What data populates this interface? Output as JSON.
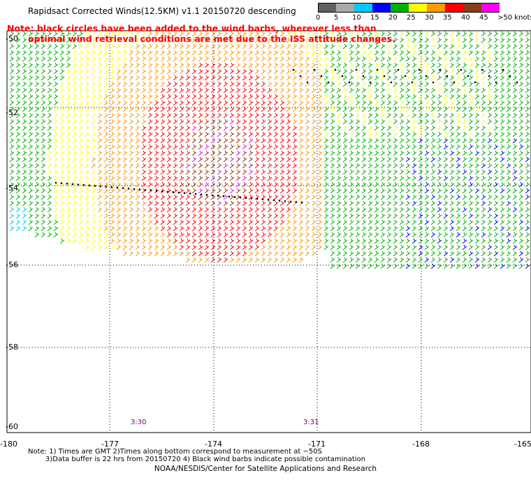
{
  "title": "Rapidsact Corrected Winds(12.5KM) v1.1 20150720 descending",
  "note": {
    "line1": "Note: black circles have been added to the wind barbs, wherever less than",
    "line2": "optimal wind retrieval conditions are met due to the ISS attitude changes."
  },
  "colorbar": {
    "labels": [
      "0",
      "5",
      "10",
      "15",
      "20",
      "25",
      "30",
      "35",
      "40",
      "45",
      ">50 knots"
    ],
    "colors": [
      "#606060",
      "#a8a8a8",
      "#00c8ff",
      "#0000ff",
      "#00b000",
      "#ffff00",
      "#ff9900",
      "#ff0000",
      "#8b3a1a",
      "#ff00ff",
      "#400080"
    ]
  },
  "axes": {
    "lon_labels": [
      "-180",
      "-177",
      "-174",
      "-171",
      "-168",
      "-165"
    ],
    "lat_labels": [
      "-50",
      "-52",
      "-54",
      "-56",
      "-58",
      "-60"
    ]
  },
  "time_labels": [
    "3:30",
    "3:31"
  ],
  "footnote": {
    "line1": "Note: 1) Times are GMT 2)Times along bottom correspond to measurement at ~50S",
    "line2": "3)Data buffer is 22 hrs from 20150720 4) Black wind barbs indicate possible contamination"
  },
  "credit": "NOAA/NESDIS/Center for Satellite Applications and Research"
}
